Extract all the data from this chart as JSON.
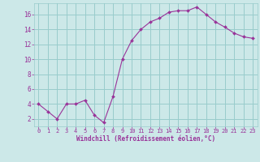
{
  "x": [
    0,
    1,
    2,
    3,
    4,
    5,
    6,
    7,
    8,
    9,
    10,
    11,
    12,
    13,
    14,
    15,
    16,
    17,
    18,
    19,
    20,
    21,
    22,
    23
  ],
  "y": [
    4,
    3,
    2,
    4,
    4,
    4.5,
    2.5,
    1.5,
    5,
    10,
    12.5,
    14,
    15,
    15.5,
    16.3,
    16.5,
    16.5,
    17,
    16,
    15,
    14.3,
    13.5,
    13,
    12.8
  ],
  "line_color": "#993399",
  "marker_color": "#993399",
  "bg_color": "#cce8e8",
  "grid_color": "#99cccc",
  "xlabel": "Windchill (Refroidissement éolien,°C)",
  "xlabel_color": "#993399",
  "tick_color": "#993399",
  "ylim": [
    1,
    17.5
  ],
  "yticks": [
    2,
    4,
    6,
    8,
    10,
    12,
    14,
    16
  ],
  "xlim": [
    -0.5,
    23.5
  ],
  "xticks": [
    0,
    1,
    2,
    3,
    4,
    5,
    6,
    7,
    8,
    9,
    10,
    11,
    12,
    13,
    14,
    15,
    16,
    17,
    18,
    19,
    20,
    21,
    22,
    23
  ]
}
